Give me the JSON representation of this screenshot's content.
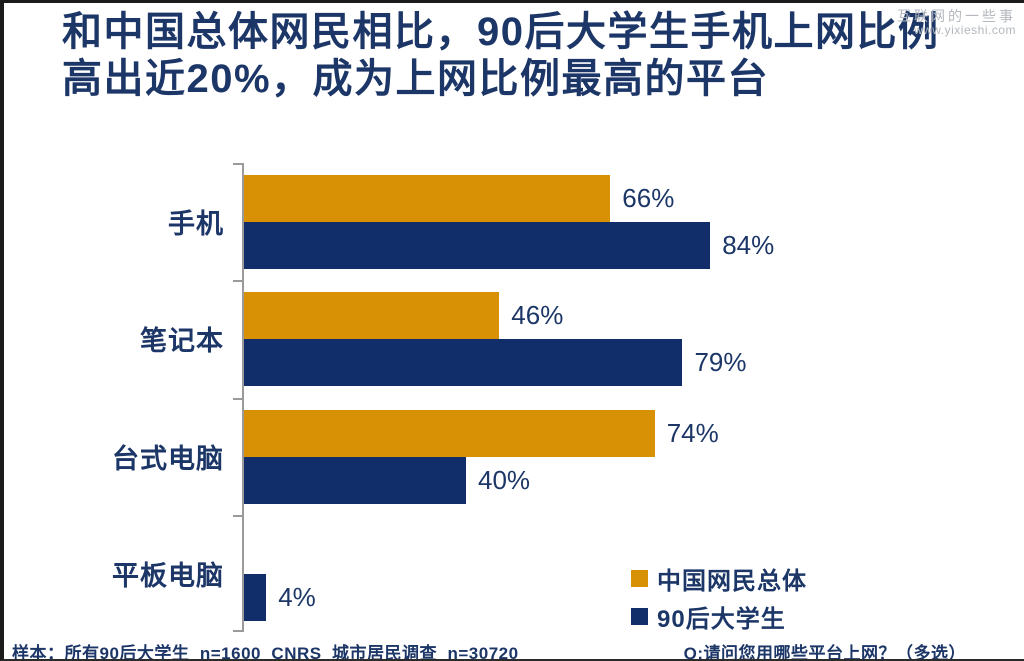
{
  "title": {
    "line1": "和中国总体网民相比，90后大学生手机上网比例",
    "line2": "高出近20%，成为上网比例最高的平台"
  },
  "watermark": {
    "line1": "互联网的一些事",
    "line2": "www.yixieshi.com"
  },
  "footer": {
    "left": "样本：所有90后大学生  n=1600  CNRS  城市居民调查  n=30720",
    "right": "Q:请问您用哪些平台上网？（多选）"
  },
  "colors": {
    "navy_text": "#1c3667",
    "bar_orange": "#d89005",
    "bar_navy": "#122e6a",
    "axis_gray": "#9a9a9a",
    "watermark_gray": "#b3b8be"
  },
  "chart_data": {
    "type": "bar",
    "orientation": "horizontal",
    "title": "和中国总体网民相比，90后大学生手机上网比例高出近20%，成为上网比例最高的平台",
    "categories": [
      "手机",
      "笔记本",
      "台式电脑",
      "平板电脑"
    ],
    "category_keys": [
      "mobile",
      "laptop",
      "desktop",
      "tablet"
    ],
    "series": [
      {
        "key": "china-overall",
        "name": "中国网民总体",
        "color": "#d89005",
        "values": [
          66,
          46,
          74,
          null
        ]
      },
      {
        "key": "post90s-students",
        "name": "90后大学生",
        "color": "#122e6a",
        "values": [
          84,
          79,
          40,
          4
        ]
      }
    ],
    "value_suffix": "%",
    "xlim": [
      0,
      100
    ],
    "grid": false,
    "legend_position": "bottom-right",
    "value_labels": "outside-end"
  }
}
